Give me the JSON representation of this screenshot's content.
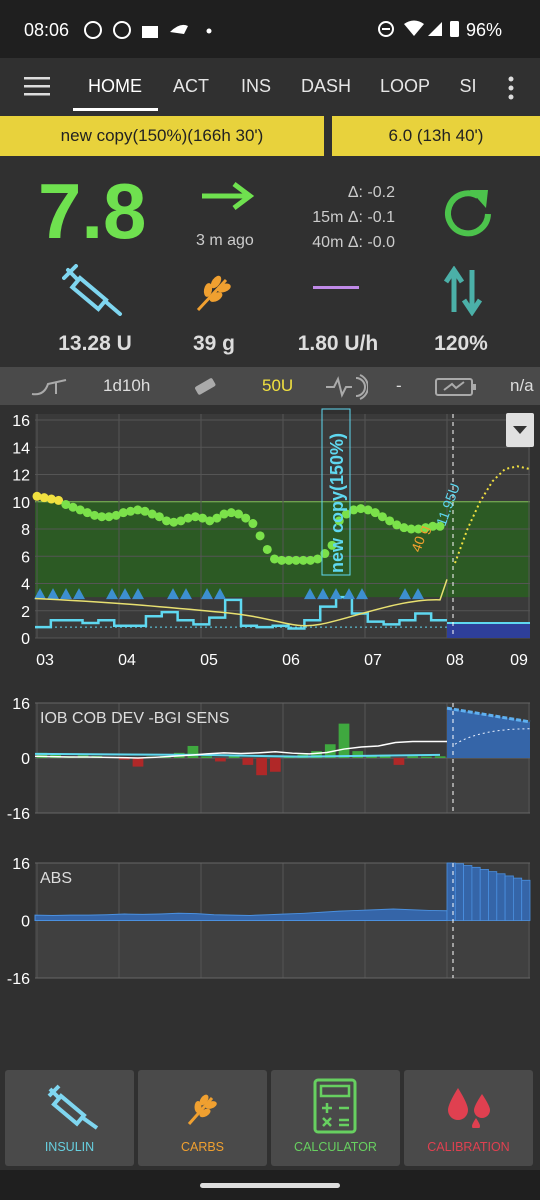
{
  "status_bar": {
    "time": "08:06",
    "battery": "96%"
  },
  "tabs": [
    "HOME",
    "ACT",
    "INS",
    "DASH",
    "LOOP",
    "SI"
  ],
  "profile": "new copy(150%)(166h 30')",
  "target": "6.0 (13h 40')",
  "bg": {
    "value": "7.8",
    "age": "3 m ago",
    "delta": "Δ: -0.2",
    "delta_15m": "15m Δ: -0.1",
    "delta_40m": "40m Δ: -0.0"
  },
  "stats": {
    "iob": "13.28 U",
    "cob": "39 g",
    "basal": "1.80 U/h",
    "autosens": "120%"
  },
  "status_strip": {
    "cannula_age": "1d10h",
    "reservoir": "50U",
    "sensor": "-",
    "battery": "n/a"
  },
  "main_graph": {
    "ylim": [
      0,
      16
    ],
    "yticks": [
      0,
      2,
      4,
      6,
      8,
      10,
      12,
      14,
      16
    ],
    "xticks": [
      "03",
      "04",
      "05",
      "06",
      "07",
      "08",
      "09"
    ],
    "target_range": [
      3,
      10
    ],
    "profile_label": "new copy(150%)",
    "bolus_label": "11.95U",
    "carbs_label": "40 g",
    "bg_values": [
      10.4,
      10.3,
      10.2,
      10.1,
      9.8,
      9.6,
      9.4,
      9.2,
      9.0,
      8.9,
      8.9,
      9.0,
      9.2,
      9.3,
      9.4,
      9.3,
      9.1,
      8.9,
      8.6,
      8.5,
      8.6,
      8.8,
      8.9,
      8.8,
      8.6,
      8.8,
      9.1,
      9.2,
      9.1,
      8.8,
      8.4,
      7.5,
      6.5,
      5.8,
      5.7,
      5.7,
      5.7,
      5.7,
      5.7,
      5.8,
      6.2,
      6.8,
      8.6,
      9.1,
      9.4,
      9.5,
      9.4,
      9.2,
      8.9,
      8.6,
      8.3,
      8.1,
      8.0,
      8.0,
      8.1,
      8.2,
      8.2
    ],
    "basal_values": [
      0.8,
      1.3,
      1.3,
      1.1,
      1.3,
      0.9,
      0.9,
      1.6,
      1.9,
      1.3,
      1.0,
      1.5,
      2.8,
      0.9,
      0.8,
      0.9,
      0.7,
      1.3,
      2.3,
      3.0,
      1.8,
      1.2,
      1.0,
      1.3,
      1.8,
      1.3
    ],
    "prediction": [
      5.5,
      8.0,
      10.0,
      11.5,
      12.4,
      12.6,
      12.4
    ],
    "bg_color": "#7be14a",
    "high_color": "#f0e040"
  },
  "iob_graph": {
    "label": "IOB COB DEV -BGI SENS",
    "ylim": [
      -16,
      16
    ],
    "yticks": [
      16,
      0,
      -16
    ],
    "iob": [
      0.5,
      0.4,
      0.3,
      0.3,
      0.2,
      0.1,
      0.0,
      0.2,
      0.5,
      0.8,
      1.2,
      1.5,
      1.3,
      1.5,
      1.8,
      1.4,
      1.2,
      1.6,
      2.6,
      3.2,
      3.5,
      4.5,
      4.8,
      4.8,
      4.8
    ],
    "deviations": [
      1.5,
      1.0,
      0.5,
      0.8,
      0.6,
      0.3,
      -0.5,
      -2.5,
      0.4,
      0.6,
      1.5,
      3.5,
      0.5,
      -1.0,
      1.0,
      -2.0,
      -5.0,
      -4.0,
      0.3,
      1.0,
      2.0,
      4.0,
      10.0,
      2.0,
      0.5,
      1.0,
      -2.0,
      0.5,
      0.4,
      0.5
    ]
  },
  "abs_graph": {
    "label": "ABS",
    "ylim": [
      -16,
      16
    ],
    "yticks": [
      16,
      0,
      -16
    ],
    "values": [
      1.5,
      1.4,
      1.5,
      1.5,
      1.6,
      1.8,
      1.7,
      1.8,
      2.0,
      1.9,
      1.6,
      1.5,
      1.4,
      1.6,
      1.8,
      2.0,
      2.3,
      2.6,
      2.8,
      3.0,
      3.2,
      3.0,
      2.8,
      2.7
    ],
    "future": [
      16,
      15.8,
      15.3,
      14.8,
      14.2,
      13.6,
      13.0,
      12.4,
      11.8,
      11.2
    ]
  },
  "buttons": [
    "INSULIN",
    "CARBS",
    "CALCULATOR",
    "CALIBRATION"
  ]
}
